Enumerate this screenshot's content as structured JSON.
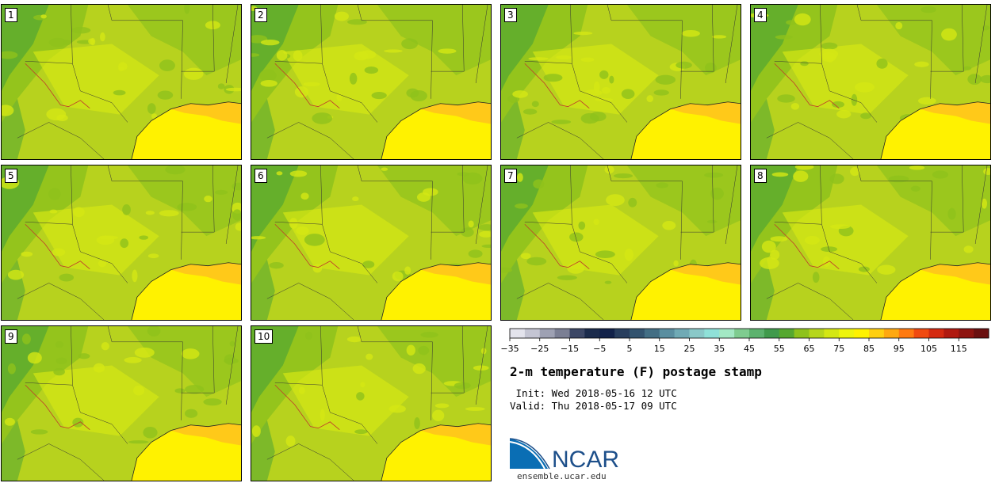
{
  "panels": [
    {
      "label": "1"
    },
    {
      "label": "2"
    },
    {
      "label": "3"
    },
    {
      "label": "4"
    },
    {
      "label": "5"
    },
    {
      "label": "6"
    },
    {
      "label": "7"
    },
    {
      "label": "8"
    },
    {
      "label": "9"
    },
    {
      "label": "10"
    }
  ],
  "colorbar": {
    "ticks": [
      "−35",
      "−25",
      "−15",
      "−5",
      "5",
      "15",
      "25",
      "35",
      "45",
      "55",
      "65",
      "75",
      "85",
      "95",
      "105",
      "115"
    ],
    "colors": [
      "#e3e3ec",
      "#c4c5d3",
      "#9ea1b3",
      "#7b7f94",
      "#3c4766",
      "#1b2b4c",
      "#12224a",
      "#283e5e",
      "#33536f",
      "#436e84",
      "#5a8ea0",
      "#70aab5",
      "#8ac8c8",
      "#8fe1d8",
      "#a3e8c4",
      "#7fcc90",
      "#5cb26e",
      "#409a4c",
      "#56a830",
      "#8ec21c",
      "#b6d61c",
      "#d4e714",
      "#eef50c",
      "#fff200",
      "#ffcf10",
      "#ffa810",
      "#ff7a10",
      "#f04a10",
      "#d42a10",
      "#b01a10",
      "#8e1410",
      "#6a1010"
    ]
  },
  "title": "2-m temperature (F) postage stamp",
  "init": " Init: Wed 2018-05-16 12 UTC",
  "valid": "Valid: Thu 2018-05-17 09 UTC",
  "logo": {
    "name": "NCAR",
    "url": "ensemble.ucar.edu"
  },
  "colors": {
    "gulf": "#fff200",
    "warm_band": "#ffc61a",
    "land": "#b7d21e",
    "light": "#d4e714",
    "mid": "#8ec21c",
    "dark": "#56a830",
    "boundary": "#333333",
    "river": "#c0392b"
  }
}
